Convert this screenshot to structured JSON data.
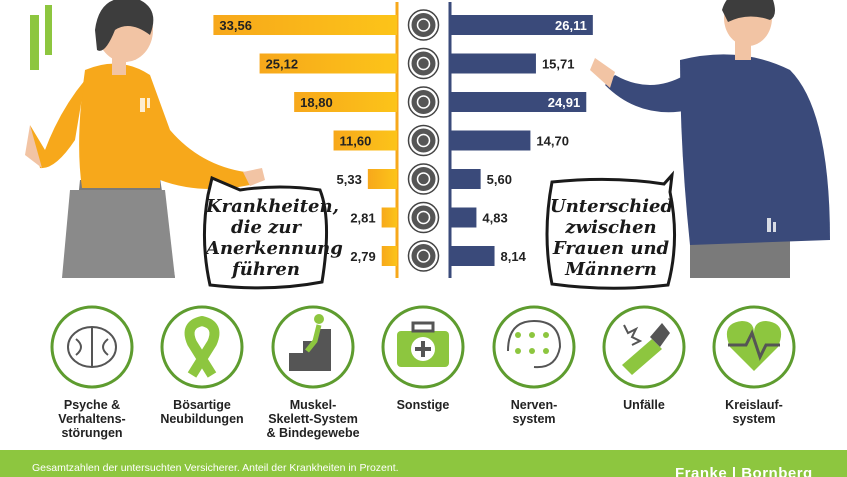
{
  "chart_data": {
    "type": "bar",
    "categories": [
      "Psyche & Verhaltens-\nstörungen",
      "Bösartige\nNeubildungen",
      "Muskel-\nSkelett-System\n& Bindegewebe",
      "Sonstige",
      "Nerven-\nsystem",
      "Unfälle",
      "Kreislauf-\nsystem"
    ],
    "series": [
      {
        "name": "Krankheiten, die zur Anerkennung führen",
        "values": [
          33.56,
          25.12,
          18.8,
          11.6,
          5.33,
          2.81,
          2.79
        ]
      },
      {
        "name": "Unterschied zwischen Frauen und Männern",
        "values": [
          26.11,
          15.71,
          24.91,
          14.7,
          5.6,
          4.83,
          8.14
        ]
      }
    ],
    "labels_left": [
      "33,56",
      "25,12",
      "18,80",
      "11,60",
      "5,33",
      "2,81",
      "2,79"
    ],
    "labels_right": [
      "26,11",
      "15,71",
      "24,91",
      "14,70",
      "5,60",
      "4,83",
      "8,14"
    ],
    "icons": [
      "brain-icon",
      "ribbon-icon",
      "stairs-icon",
      "first-aid-kit-icon",
      "nerve-circuit-icon",
      "cast-icon",
      "heart-pulse-icon"
    ],
    "xlim": [
      0,
      34
    ],
    "grid": false,
    "legend": "speech-bubbles"
  },
  "bubble_left": "Krankheiten,\ndie zur\nAnerkennung\nführen",
  "bubble_right": "Unterschied\nzwischen\nFrauen und\nMännern",
  "footer": {
    "note": "Gesamtzahlen der untersuchten Versicherer. Anteil der Krankheiten in Prozent.",
    "brand": "Franke | Bornberg"
  },
  "colors": {
    "orange": "#f7a81b",
    "yellow": "#fcc419",
    "navy": "#3a4a7a",
    "green": "#8dc63f",
    "dark_green": "#5e9c2f"
  }
}
